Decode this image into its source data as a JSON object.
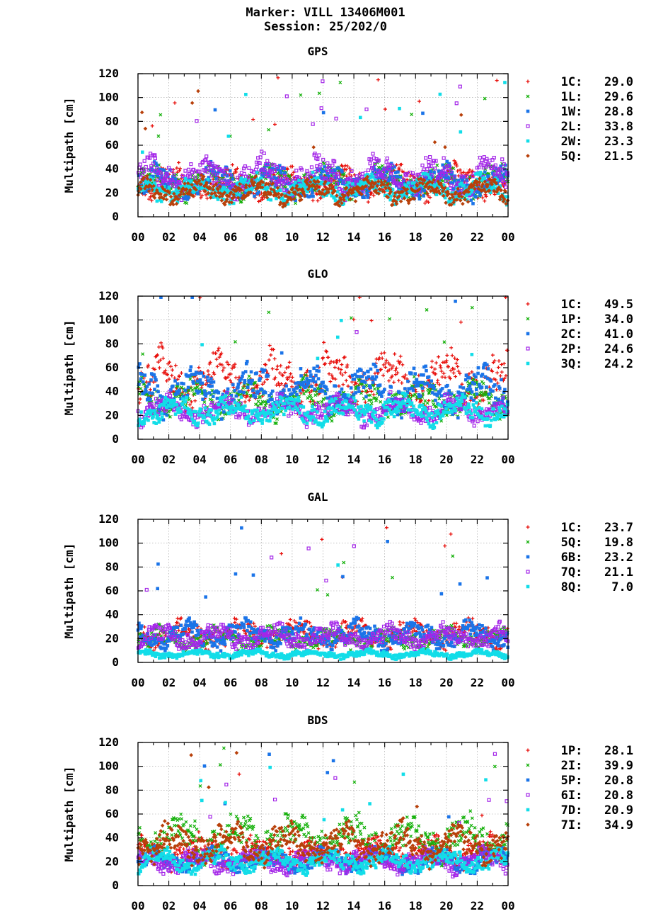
{
  "header": {
    "marker": "Marker: VILL 13406M001",
    "session": "Session: 25/202/0"
  },
  "chart_data": [
    {
      "type": "scatter",
      "title": "GPS",
      "ylabel": "Multipath [cm]",
      "xlabel": "",
      "xticks": [
        "00",
        "02",
        "04",
        "06",
        "08",
        "10",
        "12",
        "14",
        "16",
        "18",
        "20",
        "22",
        "00"
      ],
      "xlim": [
        0,
        24
      ],
      "ylim": [
        0,
        120
      ],
      "yticks": [
        0,
        20,
        40,
        60,
        80,
        100,
        120
      ],
      "grid": true,
      "legend_position": "right",
      "series": [
        {
          "name": "1C",
          "legend_value": "29.0",
          "color": "#e8100c",
          "marker": "plus",
          "base": 29.0
        },
        {
          "name": "1L",
          "legend_value": "29.6",
          "color": "#16b10c",
          "marker": "cross",
          "base": 29.6
        },
        {
          "name": "1W",
          "legend_value": "28.8",
          "color": "#1b74e8",
          "marker": "square",
          "base": 28.8
        },
        {
          "name": "2L",
          "legend_value": "33.8",
          "color": "#a427e8",
          "marker": "osquare",
          "base": 33.8
        },
        {
          "name": "2W",
          "legend_value": "23.3",
          "color": "#12dde8",
          "marker": "square",
          "base": 23.3
        },
        {
          "name": "5Q",
          "legend_value": "21.5",
          "color": "#b8400a",
          "marker": "diamond",
          "base": 21.5
        }
      ]
    },
    {
      "type": "scatter",
      "title": "GLO",
      "ylabel": "Multipath [cm]",
      "xlabel": "",
      "xticks": [
        "00",
        "02",
        "04",
        "06",
        "08",
        "10",
        "12",
        "14",
        "16",
        "18",
        "20",
        "22",
        "00"
      ],
      "xlim": [
        0,
        24
      ],
      "ylim": [
        0,
        120
      ],
      "yticks": [
        0,
        20,
        40,
        60,
        80,
        100,
        120
      ],
      "grid": true,
      "legend_position": "right",
      "series": [
        {
          "name": "1C",
          "legend_value": "49.5",
          "color": "#e8100c",
          "marker": "plus",
          "base": 49.5
        },
        {
          "name": "1P",
          "legend_value": "34.0",
          "color": "#16b10c",
          "marker": "cross",
          "base": 34.0
        },
        {
          "name": "2C",
          "legend_value": "41.0",
          "color": "#1b74e8",
          "marker": "square",
          "base": 41.0
        },
        {
          "name": "2P",
          "legend_value": "24.6",
          "color": "#a427e8",
          "marker": "osquare",
          "base": 24.6
        },
        {
          "name": "3Q",
          "legend_value": "24.2",
          "color": "#12dde8",
          "marker": "square",
          "base": 24.2
        }
      ]
    },
    {
      "type": "scatter",
      "title": "GAL",
      "ylabel": "Multipath [cm]",
      "xlabel": "",
      "xticks": [
        "00",
        "02",
        "04",
        "06",
        "08",
        "10",
        "12",
        "14",
        "16",
        "18",
        "20",
        "22",
        "00"
      ],
      "xlim": [
        0,
        24
      ],
      "ylim": [
        0,
        120
      ],
      "yticks": [
        0,
        20,
        40,
        60,
        80,
        100,
        120
      ],
      "grid": true,
      "legend_position": "right",
      "series": [
        {
          "name": "1C",
          "legend_value": "23.7",
          "color": "#e8100c",
          "marker": "plus",
          "base": 23.7
        },
        {
          "name": "5Q",
          "legend_value": "19.8",
          "color": "#16b10c",
          "marker": "cross",
          "base": 19.8
        },
        {
          "name": "6B",
          "legend_value": "23.2",
          "color": "#1b74e8",
          "marker": "square",
          "base": 23.2
        },
        {
          "name": "7Q",
          "legend_value": "21.1",
          "color": "#a427e8",
          "marker": "osquare",
          "base": 21.1
        },
        {
          "name": "8Q",
          "legend_value": "7.0",
          "color": "#12dde8",
          "marker": "square",
          "base": 7.0
        }
      ]
    },
    {
      "type": "scatter",
      "title": "BDS",
      "ylabel": "Multipath [cm]",
      "xlabel": "",
      "xticks": [
        "00",
        "02",
        "04",
        "06",
        "08",
        "10",
        "12",
        "14",
        "16",
        "18",
        "20",
        "22",
        "00"
      ],
      "xlim": [
        0,
        24
      ],
      "ylim": [
        0,
        120
      ],
      "yticks": [
        0,
        20,
        40,
        60,
        80,
        100,
        120
      ],
      "grid": true,
      "legend_position": "right",
      "series": [
        {
          "name": "1P",
          "legend_value": "28.1",
          "color": "#e8100c",
          "marker": "plus",
          "base": 28.1
        },
        {
          "name": "2I",
          "legend_value": "39.9",
          "color": "#16b10c",
          "marker": "cross",
          "base": 39.9
        },
        {
          "name": "5P",
          "legend_value": "20.8",
          "color": "#1b74e8",
          "marker": "square",
          "base": 20.8
        },
        {
          "name": "6I",
          "legend_value": "20.8",
          "color": "#a427e8",
          "marker": "osquare",
          "base": 20.8
        },
        {
          "name": "7D",
          "legend_value": "20.9",
          "color": "#12dde8",
          "marker": "square",
          "base": 20.9
        },
        {
          "name": "7I",
          "legend_value": "34.9",
          "color": "#b8400a",
          "marker": "diamond",
          "base": 34.9
        }
      ]
    }
  ]
}
